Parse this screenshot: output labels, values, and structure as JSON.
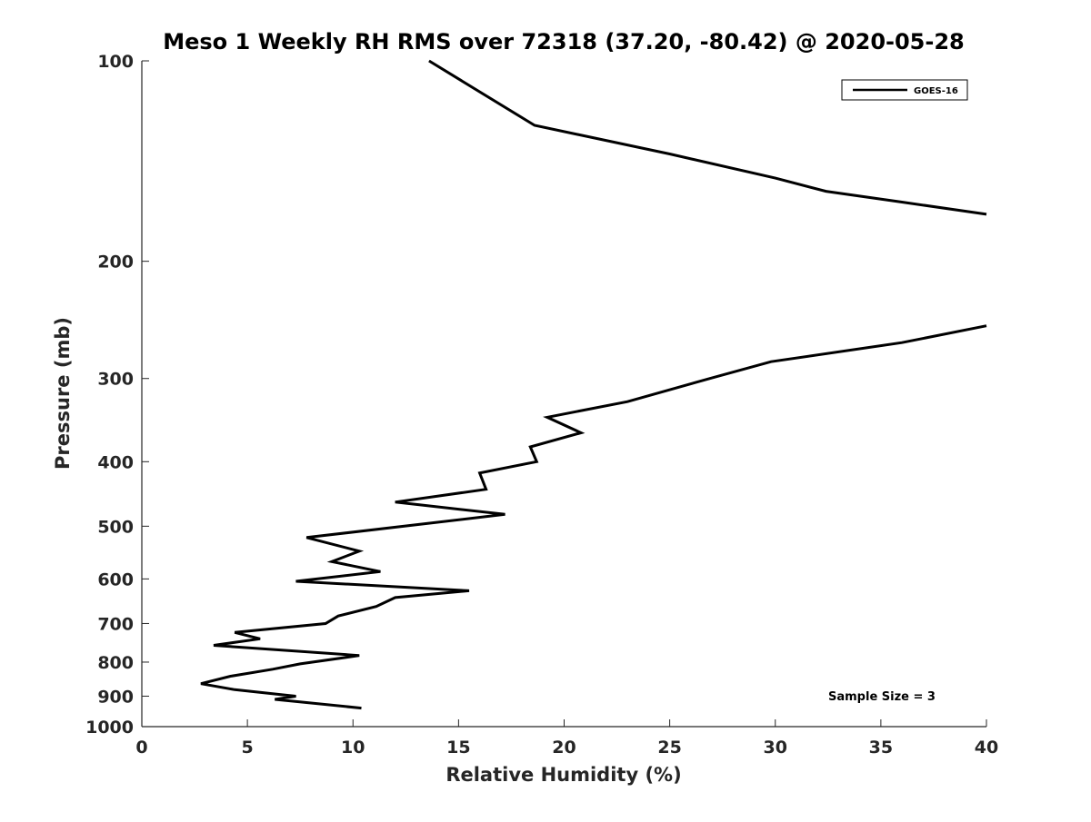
{
  "chart_data": {
    "type": "line",
    "title": "Meso 1 Weekly RH RMS over 72318 (37.20, -80.42) @ 2020-05-28",
    "xlabel": "Relative Humidity (%)",
    "ylabel": "Pressure (mb)",
    "xlim": [
      0,
      40
    ],
    "ylim": [
      100,
      1000
    ],
    "yscale": "log",
    "y_reversed": true,
    "xticks": [
      0,
      5,
      10,
      15,
      20,
      25,
      30,
      35,
      40
    ],
    "yticks": [
      100,
      200,
      300,
      400,
      500,
      600,
      700,
      800,
      900,
      1000
    ],
    "grid": false,
    "legend_position": "top-right",
    "annotation": "Sample Size = 3",
    "series": [
      {
        "name": "GOES-16",
        "color": "#000000",
        "segments": [
          [
            [
              13.6,
              100
            ],
            [
              18.6,
              125
            ],
            [
              25,
              138
            ],
            [
              30,
              150
            ],
            [
              32.4,
              157
            ],
            [
              36,
              163
            ],
            [
              40,
              170
            ]
          ],
          [
            [
              40,
              250
            ],
            [
              36,
              265
            ],
            [
              29.8,
              283
            ],
            [
              26.9,
              300
            ],
            [
              23,
              325
            ],
            [
              19.2,
              343
            ],
            [
              20.8,
              362
            ],
            [
              18.4,
              380
            ],
            [
              18.7,
              400
            ],
            [
              16.0,
              416
            ],
            [
              16.3,
              440
            ],
            [
              12.0,
              460
            ],
            [
              17.2,
              480
            ],
            [
              7.8,
              520
            ],
            [
              10.3,
              545
            ],
            [
              9.0,
              565
            ],
            [
              11.3,
              585
            ],
            [
              7.3,
              605
            ],
            [
              15.5,
              625
            ],
            [
              12.0,
              640
            ],
            [
              11.1,
              660
            ],
            [
              9.3,
              682
            ],
            [
              8.7,
              700
            ],
            [
              4.4,
              722
            ],
            [
              5.6,
              738
            ],
            [
              3.4,
              755
            ],
            [
              10.3,
              782
            ],
            [
              7.5,
              805
            ],
            [
              6.2,
              820
            ],
            [
              4.2,
              840
            ],
            [
              2.8,
              862
            ],
            [
              4.4,
              880
            ],
            [
              7.3,
              900
            ],
            [
              6.3,
              910
            ],
            [
              10.4,
              938
            ]
          ]
        ]
      }
    ]
  }
}
